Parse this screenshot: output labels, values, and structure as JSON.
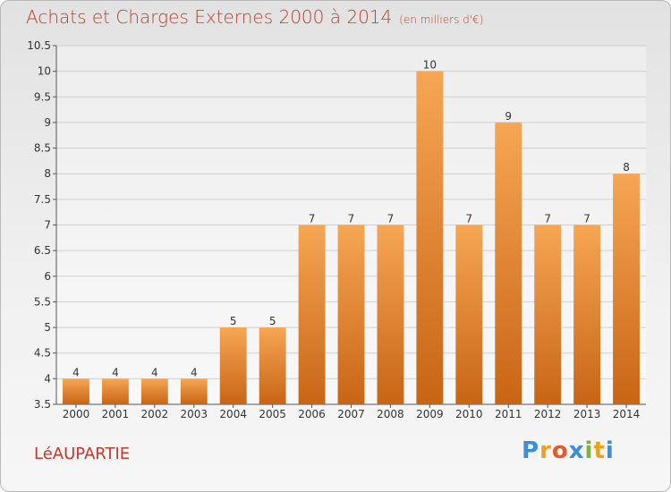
{
  "title": "Achats et Charges Externes 2000 à 2014",
  "unit": "(en milliers d'€)",
  "commune": "LéAUPARTIE",
  "logo": {
    "letters": [
      "P",
      "r",
      "o",
      "x",
      "i",
      "t",
      "i"
    ],
    "colors": [
      "#3c8fd6",
      "#e8a21e",
      "#e35a2b",
      "#3c8fd6",
      "#7ab52e",
      "#e8a21e",
      "#3c8fd6"
    ]
  },
  "colors": {
    "bar_top": "#f6a654",
    "bar_bottom": "#c86515",
    "title": "#b8422c"
  },
  "chart_data": {
    "type": "bar",
    "categories": [
      "2000",
      "2001",
      "2002",
      "2003",
      "2004",
      "2005",
      "2006",
      "2007",
      "2008",
      "2009",
      "2010",
      "2011",
      "2012",
      "2013",
      "2014"
    ],
    "values": [
      4,
      4,
      4,
      4,
      5,
      5,
      7,
      7,
      7,
      10,
      7,
      9,
      7,
      7,
      8
    ],
    "ylim": [
      3.5,
      10.5
    ],
    "yticks": [
      "3.5",
      "4",
      "4.5",
      "5",
      "5.5",
      "6",
      "6.5",
      "7",
      "7.5",
      "8",
      "8.5",
      "9",
      "9.5",
      "10",
      "10.5"
    ],
    "grid": true
  }
}
